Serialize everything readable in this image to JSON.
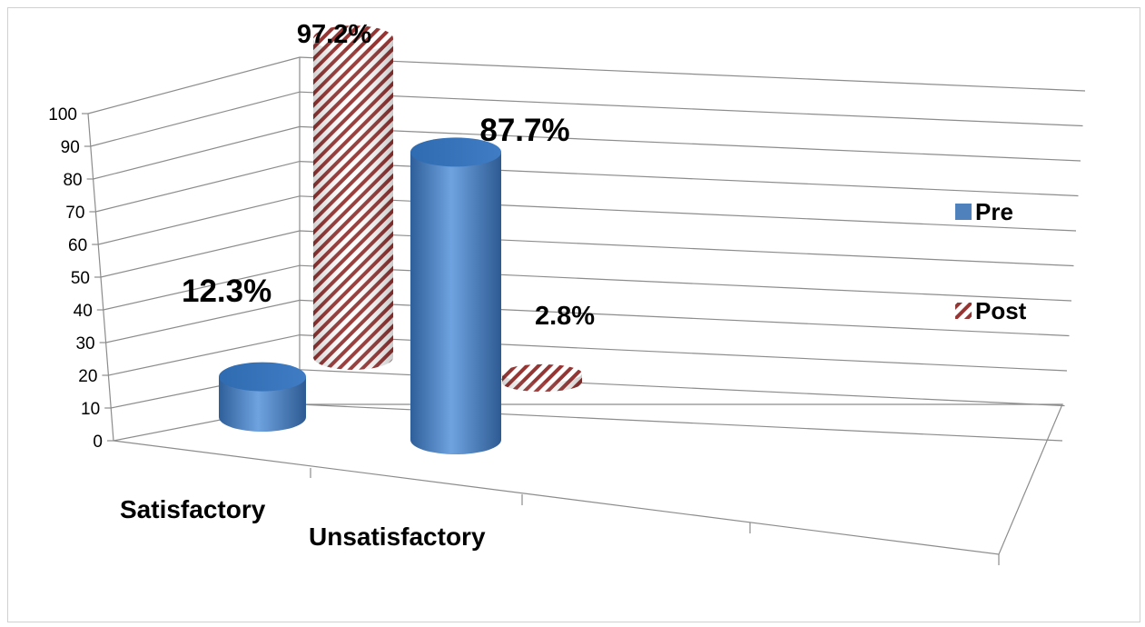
{
  "chart_data": {
    "type": "bar",
    "categories": [
      "Satisfactory",
      "Unsatisfactory"
    ],
    "series": [
      {
        "name": "Pre",
        "values": [
          12.3,
          87.7
        ],
        "labels": [
          "12.3%",
          "87.7%"
        ],
        "color": "#4f81bd",
        "pattern": "solid"
      },
      {
        "name": "Post",
        "values": [
          97.2,
          2.8
        ],
        "labels": [
          "97.2%",
          "2.8%"
        ],
        "color": "#943634",
        "pattern": "diagonal-stripes"
      }
    ],
    "y_ticks": [
      "0",
      "10",
      "20",
      "30",
      "40",
      "50",
      "60",
      "70",
      "80",
      "90",
      "100"
    ],
    "ylim": [
      0,
      100
    ],
    "grid": true,
    "legend_position": "right",
    "style": "3d-cylinder"
  }
}
